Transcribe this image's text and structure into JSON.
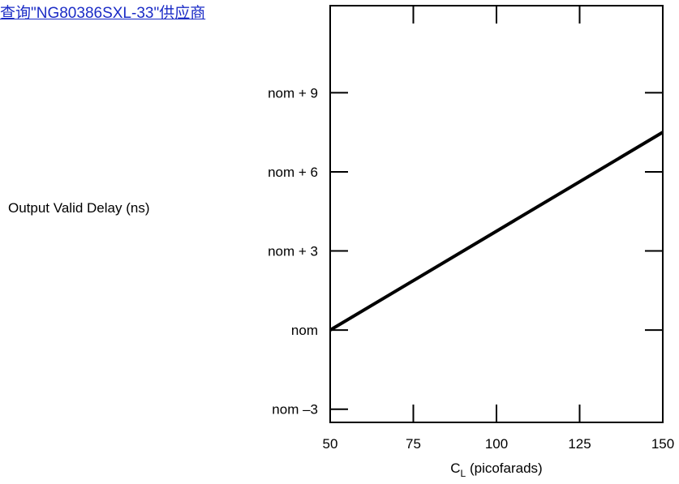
{
  "link": {
    "text": "查询\"NG80386SXL-33\"供应商",
    "color": "#1a2bc6"
  },
  "chart_data": {
    "type": "line",
    "ylabel": "Output Valid Delay (ns)",
    "xlabel_main": "C",
    "xlabel_sub": "L",
    "xlabel_rest": " (picofarads)",
    "x_ticks": [
      50,
      75,
      100,
      125,
      150
    ],
    "x_tick_labels": [
      "50",
      "75",
      "100",
      "125",
      "150"
    ],
    "y_ticks": [
      -3,
      0,
      3,
      6,
      9
    ],
    "y_tick_labels": [
      "nom –3",
      "nom",
      "nom + 3",
      "nom + 6",
      "nom + 9"
    ],
    "xlim": [
      50,
      150
    ],
    "ylim": [
      -3.5,
      12.3
    ],
    "series": [
      {
        "x": [
          50,
          150
        ],
        "y": [
          0,
          7.5
        ]
      }
    ],
    "grid": false,
    "colors": {
      "line": "#000000",
      "axes": "#000000"
    }
  }
}
